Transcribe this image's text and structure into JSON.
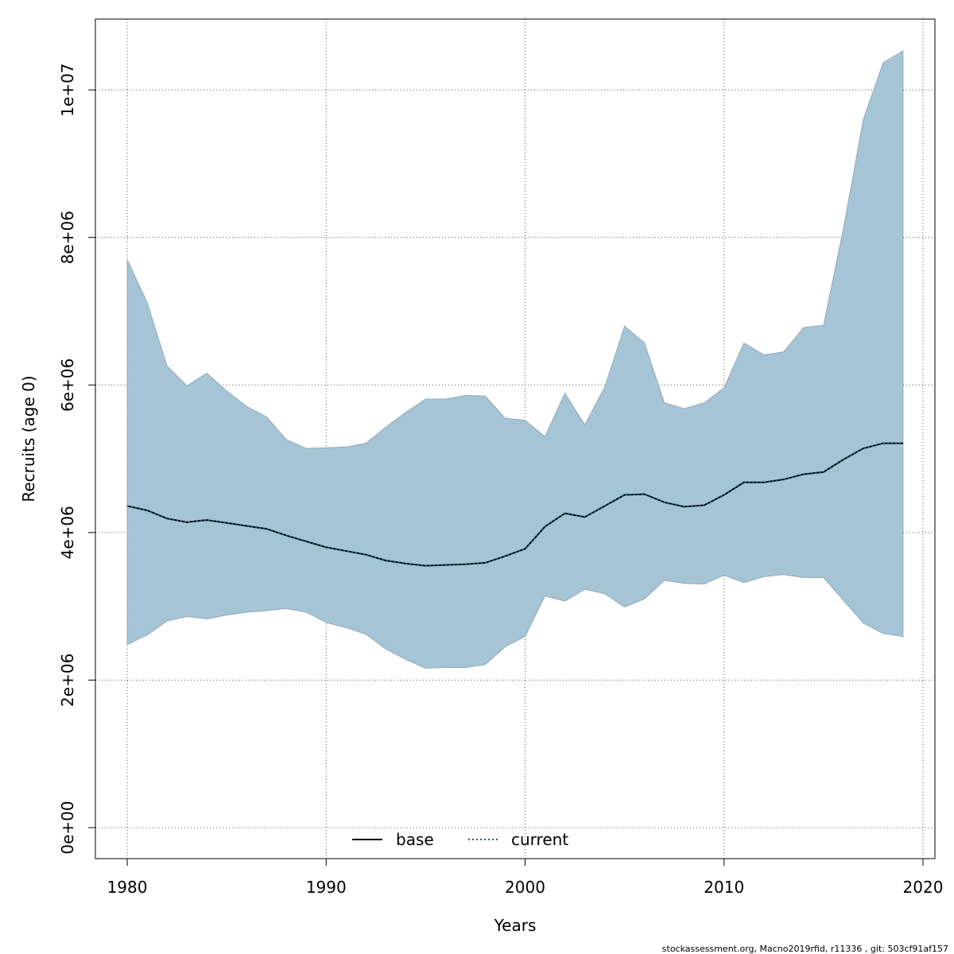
{
  "chart_data": {
    "type": "area",
    "xlabel": "Years",
    "ylabel": "Recruits (age 0)",
    "xlim": [
      1978.4,
      2020.6
    ],
    "ylim": [
      -420000,
      10960000
    ],
    "x_ticks": [
      1980,
      1990,
      2000,
      2010,
      2020
    ],
    "x_tick_labels": [
      "1980",
      "1990",
      "2000",
      "2010",
      "2020"
    ],
    "y_ticks": [
      0,
      2000000,
      4000000,
      6000000,
      8000000,
      10000000
    ],
    "y_tick_labels": [
      "0e+00",
      "2e+06",
      "4e+06",
      "6e+06",
      "8e+06",
      "1e+07"
    ],
    "grid": true,
    "legend_position": "bottom-center",
    "years": [
      1980,
      1981,
      1982,
      1983,
      1984,
      1985,
      1986,
      1987,
      1988,
      1989,
      1990,
      1991,
      1992,
      1993,
      1994,
      1995,
      1996,
      1997,
      1998,
      1999,
      2000,
      2001,
      2002,
      2003,
      2004,
      2005,
      2006,
      2007,
      2008,
      2009,
      2010,
      2011,
      2012,
      2013,
      2014,
      2015,
      2016,
      2017,
      2018,
      2019
    ],
    "band_color": "#a5c4d5",
    "band": {
      "upper": [
        7700000,
        7120000,
        6260000,
        5990000,
        6160000,
        5920000,
        5710000,
        5570000,
        5260000,
        5140000,
        5150000,
        5160000,
        5210000,
        5430000,
        5630000,
        5810000,
        5810000,
        5860000,
        5850000,
        5550000,
        5520000,
        5300000,
        5890000,
        5460000,
        5970000,
        6800000,
        6570000,
        5760000,
        5680000,
        5760000,
        5960000,
        6570000,
        6410000,
        6450000,
        6780000,
        6810000,
        8120000,
        9600000,
        10370000,
        10530000
      ],
      "lower": [
        2480000,
        2610000,
        2800000,
        2860000,
        2830000,
        2880000,
        2920000,
        2940000,
        2970000,
        2920000,
        2780000,
        2710000,
        2620000,
        2420000,
        2280000,
        2160000,
        2170000,
        2170000,
        2210000,
        2450000,
        2590000,
        3140000,
        3070000,
        3230000,
        3170000,
        2990000,
        3100000,
        3350000,
        3310000,
        3300000,
        3420000,
        3320000,
        3400000,
        3430000,
        3390000,
        3390000,
        3080000,
        2770000,
        2630000,
        2590000
      ]
    },
    "series": [
      {
        "name": "base",
        "color": "#000000",
        "style": "solid",
        "values": [
          4360000,
          4300000,
          4190000,
          4140000,
          4170000,
          4130000,
          4090000,
          4050000,
          3960000,
          3880000,
          3800000,
          3750000,
          3700000,
          3620000,
          3580000,
          3550000,
          3560000,
          3570000,
          3590000,
          3680000,
          3780000,
          4080000,
          4260000,
          4210000,
          4360000,
          4510000,
          4520000,
          4410000,
          4350000,
          4370000,
          4510000,
          4680000,
          4680000,
          4720000,
          4790000,
          4820000,
          4990000,
          5140000,
          5210000,
          5210000
        ]
      },
      {
        "name": "current",
        "color": "#1b5f8c",
        "style": "dotted",
        "values": [
          4360000,
          4300000,
          4190000,
          4140000,
          4170000,
          4130000,
          4090000,
          4050000,
          3960000,
          3880000,
          3800000,
          3750000,
          3700000,
          3620000,
          3580000,
          3550000,
          3560000,
          3570000,
          3590000,
          3680000,
          3780000,
          4080000,
          4260000,
          4210000,
          4360000,
          4510000,
          4520000,
          4410000,
          4350000,
          4370000,
          4510000,
          4680000,
          4680000,
          4720000,
          4790000,
          4820000,
          4990000,
          5140000,
          5210000,
          5210000
        ]
      }
    ],
    "legend": [
      "base",
      "current"
    ]
  },
  "footer": "stockassessment.org, Macno2019rfid, r11336 , git: 503cf91af157"
}
